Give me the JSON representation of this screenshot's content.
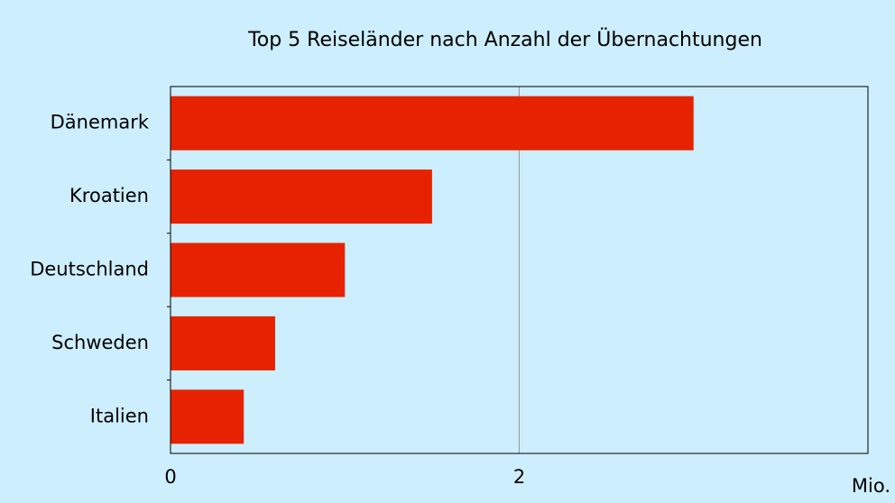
{
  "chart_data": {
    "type": "bar",
    "orientation": "horizontal",
    "title": "Top 5 Reiseländer nach Anzahl der Übernachtungen",
    "categories": [
      "Dänemark",
      "Kroatien",
      "Deutschland",
      "Schweden",
      "Italien"
    ],
    "values": [
      3.0,
      1.5,
      1.0,
      0.6,
      0.42
    ],
    "color": "#e62200",
    "xlim": [
      0,
      4
    ],
    "xticks": [
      0,
      2
    ],
    "x_label": "Mio.",
    "grid": true
  }
}
